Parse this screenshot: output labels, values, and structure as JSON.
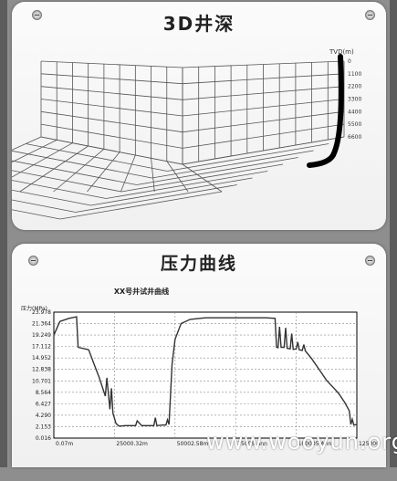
{
  "top_panel": {
    "title": "3D井深",
    "z_axis_label": "TVD(m)",
    "z_ticks": [
      "0",
      "1100",
      "2200",
      "3300",
      "4400",
      "5500",
      "6600"
    ]
  },
  "bottom_panel": {
    "title": "压力曲线",
    "chart_data": {
      "type": "line",
      "title": "XX号井试井曲线",
      "ylabel": "压力(MPa)",
      "ylim": [
        0.016,
        23.978
      ],
      "yticks": [
        "23.978",
        "21.364",
        "19.249",
        "17.112",
        "14.952",
        "12.838",
        "10.701",
        "8.564",
        "6.427",
        "4.290",
        "2.153",
        "0.016"
      ],
      "xticks": [
        "0.07m",
        "25000.32m",
        "50002.58m",
        "75005 Ann",
        "100005 Ann",
        "125000"
      ],
      "series": [
        {
          "x": [
            0,
            0.02,
            0.05,
            0.075,
            0.08,
            0.11,
            0.115,
            0.13,
            0.15,
            0.17,
            0.175,
            0.185,
            0.19,
            0.195,
            0.205,
            0.215,
            0.22,
            0.235,
            0.27,
            0.275,
            0.29,
            0.295,
            0.31,
            0.33,
            0.335,
            0.34,
            0.36,
            0.37,
            0.375,
            0.38,
            0.39,
            0.4,
            0.42,
            0.45,
            0.5,
            0.55,
            0.6,
            0.65,
            0.7,
            0.73,
            0.735,
            0.74,
            0.745,
            0.75,
            0.76,
            0.765,
            0.77,
            0.78,
            0.785,
            0.79,
            0.8,
            0.805,
            0.81,
            0.82,
            0.825,
            0.83,
            0.85,
            0.88,
            0.9,
            0.92,
            0.94,
            0.96,
            0.975,
            0.98,
            0.985,
            0.99,
            1.0
          ],
          "y": [
            19.6,
            22.2,
            22.8,
            23.1,
            17.3,
            16.9,
            16.8,
            14.5,
            11.5,
            8.0,
            11.5,
            5.5,
            9.5,
            4.8,
            2.8,
            2.3,
            2.3,
            2.4,
            2.4,
            3.3,
            2.4,
            2.4,
            2.4,
            2.4,
            3.9,
            2.4,
            2.5,
            2.5,
            3.5,
            2.6,
            14.0,
            18.8,
            21.8,
            22.6,
            22.9,
            22.9,
            22.9,
            22.9,
            22.9,
            22.8,
            17.3,
            17.2,
            21.2,
            17.3,
            17.3,
            21.0,
            17.1,
            17.0,
            19.9,
            16.9,
            17.0,
            18.3,
            16.8,
            16.7,
            17.8,
            16.6,
            15.2,
            12.7,
            11.0,
            9.8,
            8.5,
            6.8,
            5.2,
            2.6,
            3.6,
            2.5,
            2.6
          ]
        }
      ]
    }
  },
  "watermark": "www.wooyun.org"
}
